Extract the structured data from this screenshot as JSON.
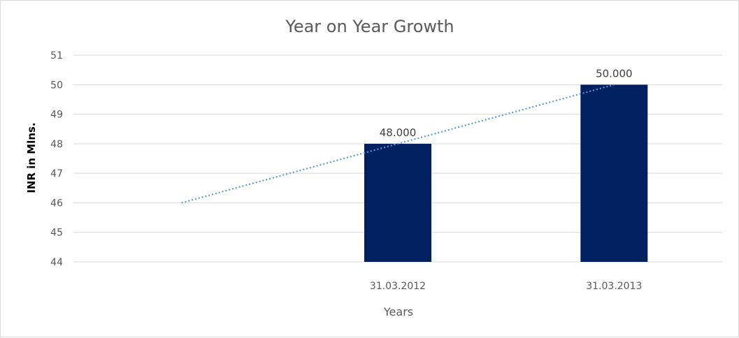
{
  "chart_data": {
    "type": "bar",
    "title": "Year on Year Growth",
    "xlabel": "Years",
    "ylabel": "INR in Mlns.",
    "categories": [
      "",
      "31.03.2012",
      "31.03.2013"
    ],
    "values": [
      null,
      48,
      50
    ],
    "data_labels": [
      "",
      "48.000",
      "50.000"
    ],
    "ylim": [
      44,
      51
    ],
    "yticks": [
      "44",
      "45",
      "46",
      "47",
      "48",
      "49",
      "50",
      "51"
    ],
    "grid": true,
    "legend": "none",
    "trendline": {
      "type": "linear",
      "style": "dotted",
      "values": [
        46,
        48,
        50
      ]
    },
    "colors": {
      "bar": "#002060",
      "trendline": "#5b9bd5",
      "grid": "#d9d9d9",
      "text": "#595959"
    }
  }
}
